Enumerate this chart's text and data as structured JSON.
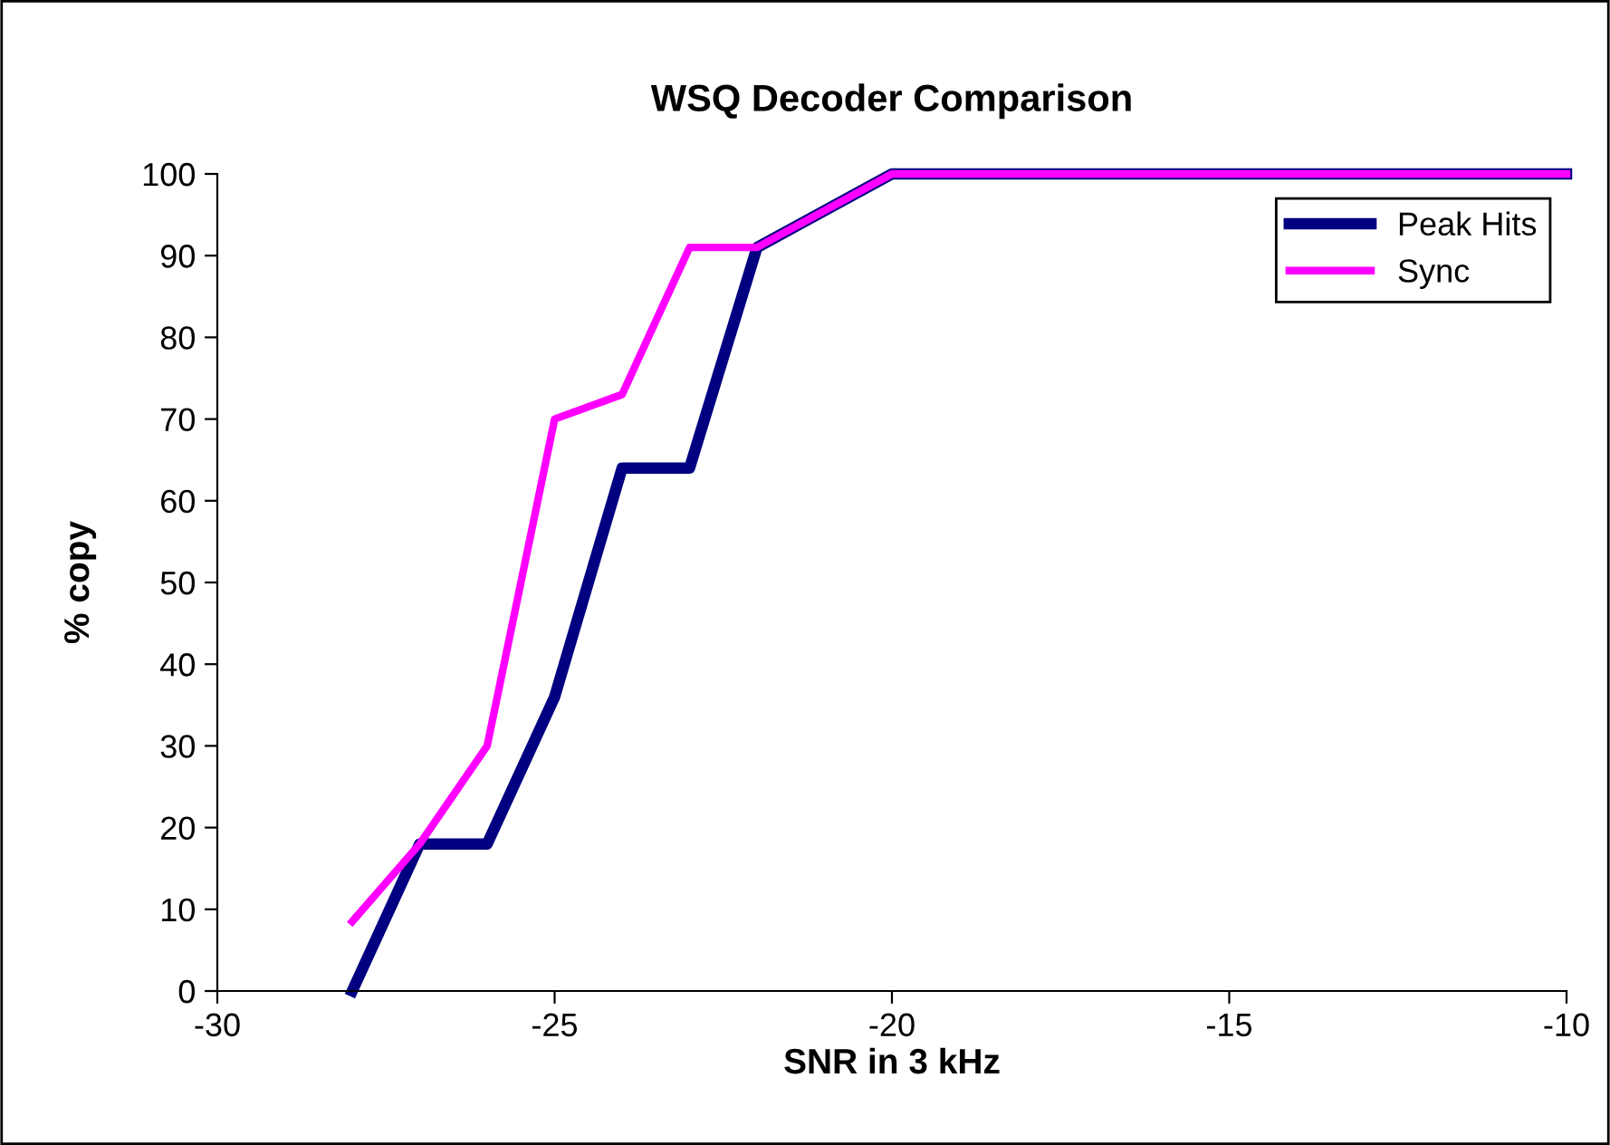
{
  "chart_data": {
    "type": "line",
    "title": "WSQ Decoder Comparison",
    "xlabel": "SNR in 3 kHz",
    "ylabel": "% copy",
    "x": [
      -28,
      -27,
      -26,
      -25,
      -24,
      -23,
      -22,
      -20,
      -10
    ],
    "series": [
      {
        "name": "Peak Hits",
        "color": "#000080",
        "values": [
          0,
          18,
          18,
          36,
          64,
          64,
          91,
          100,
          100
        ]
      },
      {
        "name": "Sync",
        "color": "#ff00ff",
        "values": [
          8.5,
          18,
          30,
          70,
          73,
          91,
          91,
          100,
          100
        ]
      }
    ],
    "xlim": [
      -30,
      -10
    ],
    "xticks": [
      -30,
      -25,
      -20,
      -15,
      -10
    ],
    "ylim": [
      0,
      100
    ],
    "yticks": [
      0,
      10,
      20,
      30,
      40,
      50,
      60,
      70,
      80,
      90,
      100
    ],
    "grid": false,
    "legend": "top right",
    "marker": "none",
    "line_style": "solid"
  }
}
